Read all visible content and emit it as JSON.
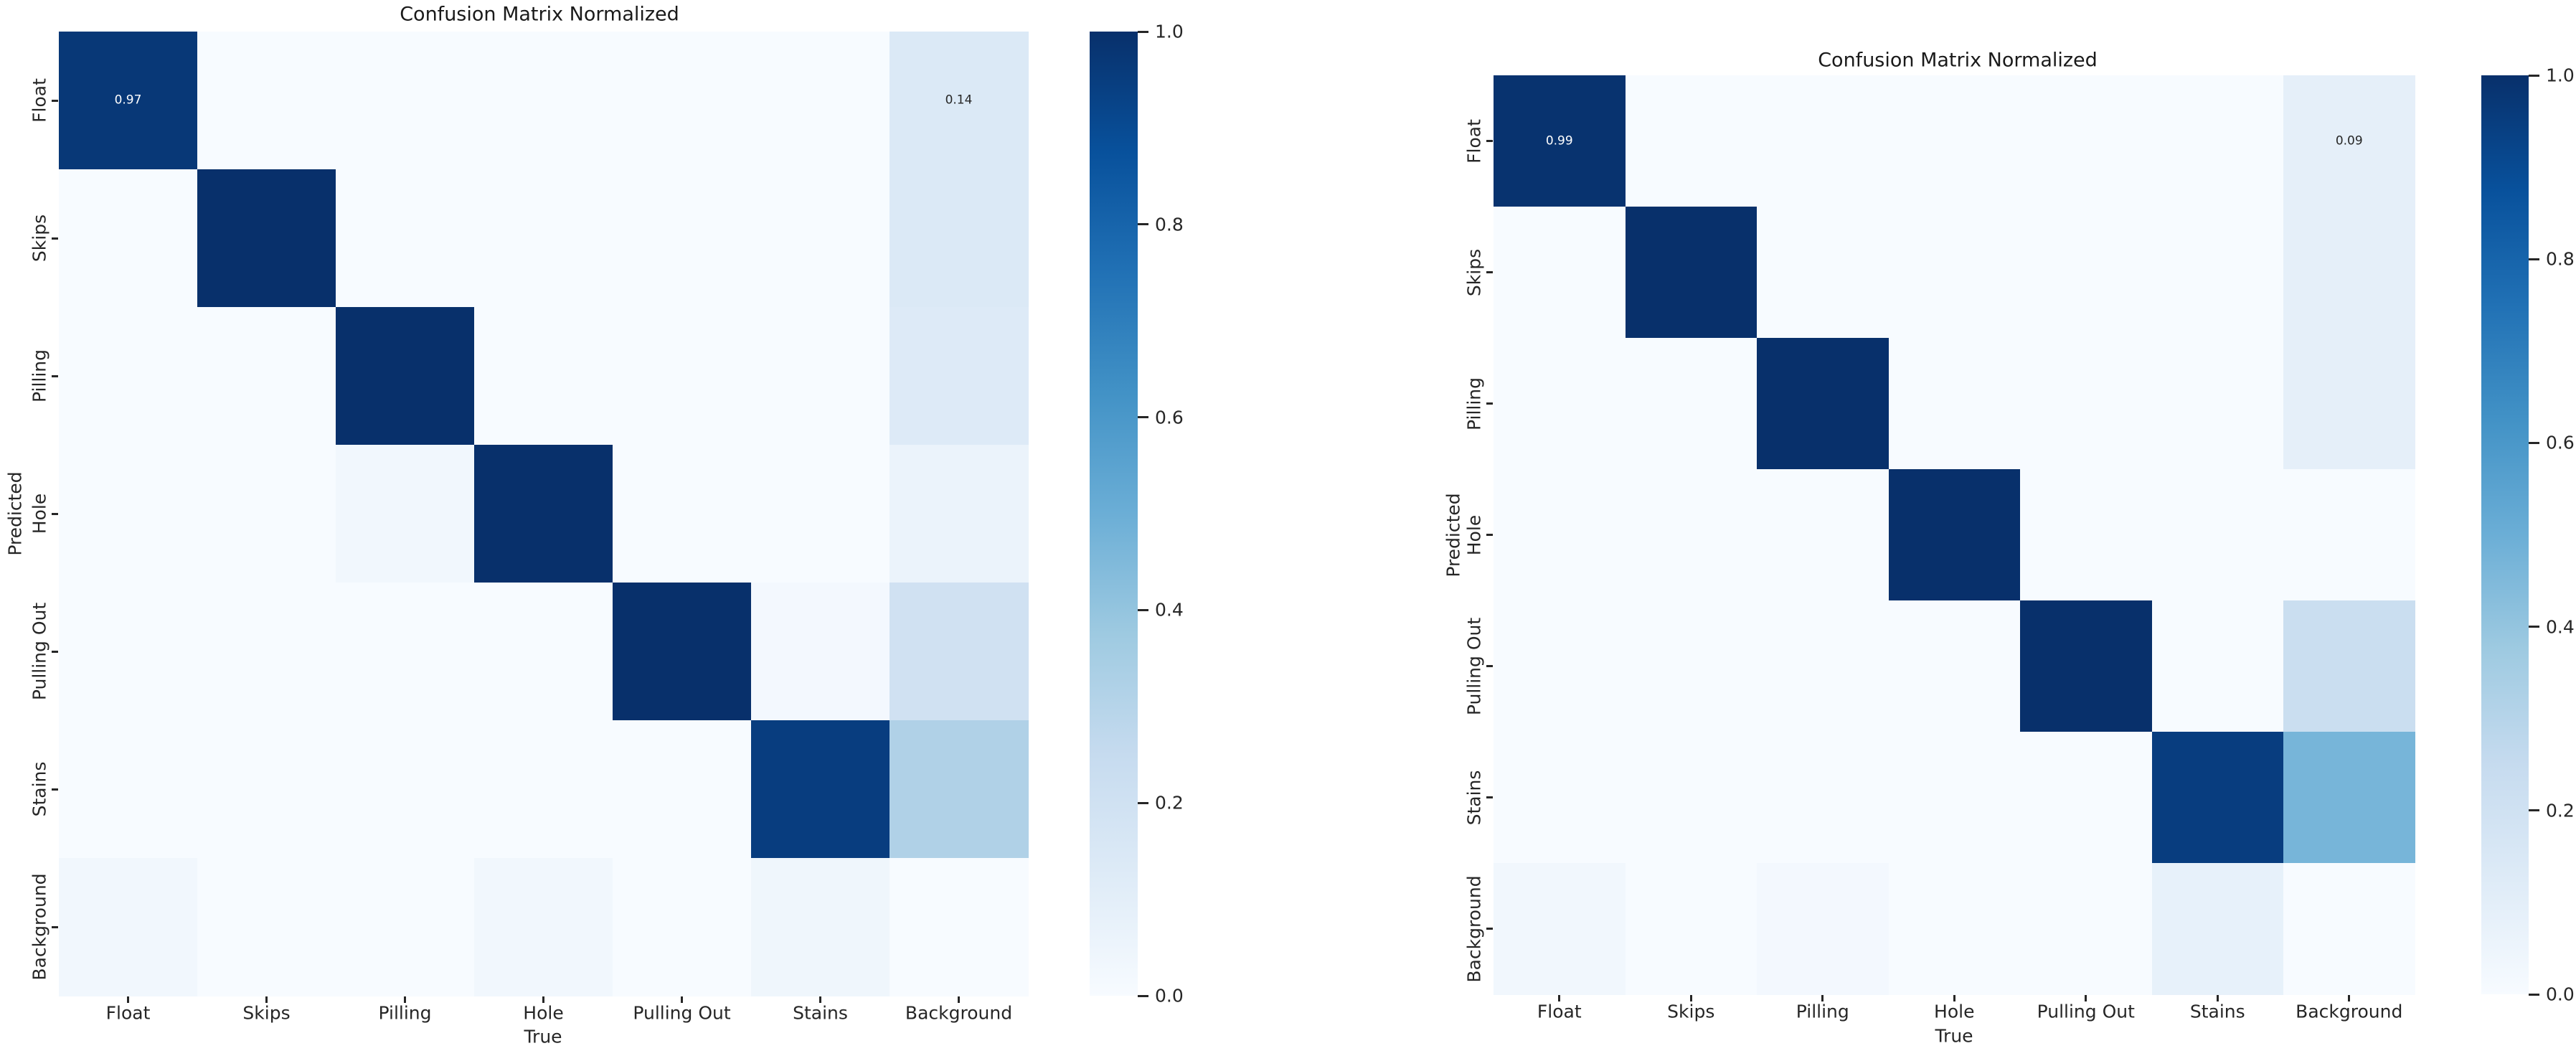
{
  "chart_data": [
    {
      "type": "heatmap",
      "title": "Confusion Matrix Normalized",
      "xlabel": "True",
      "ylabel": "Predicted",
      "x_categories": [
        "Float",
        "Skips",
        "Pilling",
        "Hole",
        "Pulling Out",
        "Stains",
        "Background"
      ],
      "y_categories": [
        "Float",
        "Skips",
        "Pilling",
        "Hole",
        "Pulling Out",
        "Stains",
        "Background"
      ],
      "vmin": 0.0,
      "vmax": 1.0,
      "grid": false,
      "legend_position": "right-colorbar",
      "values": [
        [
          0.97,
          0,
          0,
          0,
          0,
          0,
          0.14
        ],
        [
          0,
          1,
          0,
          0,
          0,
          0,
          0.14
        ],
        [
          0,
          0,
          1,
          0,
          0,
          0,
          0.13
        ],
        [
          0,
          0,
          0.03,
          1,
          0,
          0,
          0.06
        ],
        [
          0,
          0,
          0,
          0,
          1,
          0.02,
          0.2
        ],
        [
          0,
          0,
          0,
          0,
          0,
          0.95,
          0.32
        ],
        [
          0.03,
          0,
          0,
          0.03,
          0,
          0.04,
          0
        ]
      ],
      "annotations": [
        {
          "row": 0,
          "col": 0,
          "text": "0.97",
          "text_color": "light"
        },
        {
          "row": 0,
          "col": 6,
          "text": "0.14",
          "text_color": "dark"
        }
      ],
      "colorbar_tick_labels": [
        "1.0",
        "0.8",
        "0.6",
        "0.4",
        "0.2",
        "0.0"
      ]
    },
    {
      "type": "heatmap",
      "title": "Confusion Matrix Normalized",
      "xlabel": "True",
      "ylabel": "Predicted",
      "x_categories": [
        "Float",
        "Skips",
        "Pilling",
        "Hole",
        "Pulling Out",
        "Stains",
        "Background"
      ],
      "y_categories": [
        "Float",
        "Skips",
        "Pilling",
        "Hole",
        "Pulling Out",
        "Stains",
        "Background"
      ],
      "vmin": 0.0,
      "vmax": 1.0,
      "grid": false,
      "legend_position": "right-colorbar",
      "values": [
        [
          0.99,
          0,
          0,
          0,
          0,
          0,
          0.09
        ],
        [
          0,
          1,
          0,
          0,
          0,
          0,
          0.09
        ],
        [
          0,
          0,
          1,
          0,
          0,
          0,
          0.09
        ],
        [
          0,
          0,
          0,
          1,
          0,
          0,
          0
        ],
        [
          0,
          0,
          0,
          0,
          1,
          0,
          0.23
        ],
        [
          0,
          0,
          0,
          0,
          0,
          0.95,
          0.47
        ],
        [
          0.03,
          0,
          0.02,
          0,
          0,
          0.08,
          0
        ]
      ],
      "annotations": [
        {
          "row": 0,
          "col": 0,
          "text": "0.99",
          "text_color": "light"
        },
        {
          "row": 0,
          "col": 6,
          "text": "0.09",
          "text_color": "dark"
        }
      ],
      "colorbar_tick_labels": [
        "1.0",
        "0.8",
        "0.6",
        "0.4",
        "0.2",
        "0.0"
      ]
    }
  ],
  "colors": {
    "colormap": "Blues",
    "colormap_stops": [
      "#f7fbff",
      "#deebf7",
      "#c6dbef",
      "#9ecae1",
      "#6baed6",
      "#4292c6",
      "#2171b5",
      "#08519c",
      "#08306b"
    ],
    "annotation_light": "#ffffff",
    "annotation_dark": "#262626",
    "tick_text": "#262626",
    "title_text": "#1a1a1a",
    "background": "#ffffff"
  }
}
